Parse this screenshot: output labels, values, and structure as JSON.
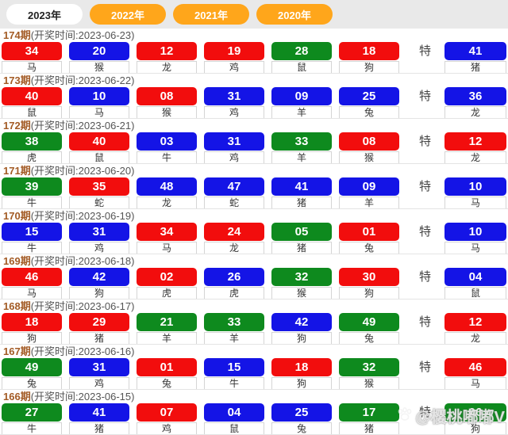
{
  "colors": {
    "red": "#f20d0d",
    "blue": "#1414e6",
    "green": "#0e8a1e",
    "tab_orange": "#ffa61b",
    "tabbar_bg": "#e9e9e9",
    "issue_text": "#a35b25"
  },
  "tabs": [
    {
      "label": "2023年",
      "active": true
    },
    {
      "label": "2022年",
      "active": false
    },
    {
      "label": "2021年",
      "active": false
    },
    {
      "label": "2020年",
      "active": false
    }
  ],
  "labels": {
    "special": "特"
  },
  "watermark": {
    "icon": "paw-icon",
    "text": "@樱桃嘟嘟V"
  },
  "rows": [
    {
      "issue_label": "174期",
      "time_label": "(开奖时间:2023-06-23)",
      "balls": [
        {
          "num": "34",
          "zodiac": "马",
          "color": "red"
        },
        {
          "num": "20",
          "zodiac": "猴",
          "color": "blue"
        },
        {
          "num": "12",
          "zodiac": "龙",
          "color": "red"
        },
        {
          "num": "19",
          "zodiac": "鸡",
          "color": "red"
        },
        {
          "num": "28",
          "zodiac": "鼠",
          "color": "green"
        },
        {
          "num": "18",
          "zodiac": "狗",
          "color": "red"
        }
      ],
      "special": {
        "num": "41",
        "zodiac": "猪",
        "color": "blue"
      }
    },
    {
      "issue_label": "173期",
      "time_label": "(开奖时间:2023-06-22)",
      "balls": [
        {
          "num": "40",
          "zodiac": "鼠",
          "color": "red"
        },
        {
          "num": "10",
          "zodiac": "马",
          "color": "blue"
        },
        {
          "num": "08",
          "zodiac": "猴",
          "color": "red"
        },
        {
          "num": "31",
          "zodiac": "鸡",
          "color": "blue"
        },
        {
          "num": "09",
          "zodiac": "羊",
          "color": "blue"
        },
        {
          "num": "25",
          "zodiac": "兔",
          "color": "blue"
        }
      ],
      "special": {
        "num": "36",
        "zodiac": "龙",
        "color": "blue"
      }
    },
    {
      "issue_label": "172期",
      "time_label": "(开奖时间:2023-06-21)",
      "balls": [
        {
          "num": "38",
          "zodiac": "虎",
          "color": "green"
        },
        {
          "num": "40",
          "zodiac": "鼠",
          "color": "red"
        },
        {
          "num": "03",
          "zodiac": "牛",
          "color": "blue"
        },
        {
          "num": "31",
          "zodiac": "鸡",
          "color": "blue"
        },
        {
          "num": "33",
          "zodiac": "羊",
          "color": "green"
        },
        {
          "num": "08",
          "zodiac": "猴",
          "color": "red"
        }
      ],
      "special": {
        "num": "12",
        "zodiac": "龙",
        "color": "red"
      }
    },
    {
      "issue_label": "171期",
      "time_label": "(开奖时间:2023-06-20)",
      "balls": [
        {
          "num": "39",
          "zodiac": "牛",
          "color": "green"
        },
        {
          "num": "35",
          "zodiac": "蛇",
          "color": "red"
        },
        {
          "num": "48",
          "zodiac": "龙",
          "color": "blue"
        },
        {
          "num": "47",
          "zodiac": "蛇",
          "color": "blue"
        },
        {
          "num": "41",
          "zodiac": "猪",
          "color": "blue"
        },
        {
          "num": "09",
          "zodiac": "羊",
          "color": "blue"
        }
      ],
      "special": {
        "num": "10",
        "zodiac": "马",
        "color": "blue"
      }
    },
    {
      "issue_label": "170期",
      "time_label": "(开奖时间:2023-06-19)",
      "balls": [
        {
          "num": "15",
          "zodiac": "牛",
          "color": "blue"
        },
        {
          "num": "31",
          "zodiac": "鸡",
          "color": "blue"
        },
        {
          "num": "34",
          "zodiac": "马",
          "color": "red"
        },
        {
          "num": "24",
          "zodiac": "龙",
          "color": "red"
        },
        {
          "num": "05",
          "zodiac": "猪",
          "color": "green"
        },
        {
          "num": "01",
          "zodiac": "兔",
          "color": "red"
        }
      ],
      "special": {
        "num": "10",
        "zodiac": "马",
        "color": "blue"
      }
    },
    {
      "issue_label": "169期",
      "time_label": "(开奖时间:2023-06-18)",
      "balls": [
        {
          "num": "46",
          "zodiac": "马",
          "color": "red"
        },
        {
          "num": "42",
          "zodiac": "狗",
          "color": "blue"
        },
        {
          "num": "02",
          "zodiac": "虎",
          "color": "red"
        },
        {
          "num": "26",
          "zodiac": "虎",
          "color": "blue"
        },
        {
          "num": "32",
          "zodiac": "猴",
          "color": "green"
        },
        {
          "num": "30",
          "zodiac": "狗",
          "color": "red"
        }
      ],
      "special": {
        "num": "04",
        "zodiac": "鼠",
        "color": "blue"
      }
    },
    {
      "issue_label": "168期",
      "time_label": "(开奖时间:2023-06-17)",
      "balls": [
        {
          "num": "18",
          "zodiac": "狗",
          "color": "red"
        },
        {
          "num": "29",
          "zodiac": "猪",
          "color": "red"
        },
        {
          "num": "21",
          "zodiac": "羊",
          "color": "green"
        },
        {
          "num": "33",
          "zodiac": "羊",
          "color": "green"
        },
        {
          "num": "42",
          "zodiac": "狗",
          "color": "blue"
        },
        {
          "num": "49",
          "zodiac": "兔",
          "color": "green"
        }
      ],
      "special": {
        "num": "12",
        "zodiac": "龙",
        "color": "red"
      }
    },
    {
      "issue_label": "167期",
      "time_label": "(开奖时间:2023-06-16)",
      "balls": [
        {
          "num": "49",
          "zodiac": "兔",
          "color": "green"
        },
        {
          "num": "31",
          "zodiac": "鸡",
          "color": "blue"
        },
        {
          "num": "01",
          "zodiac": "兔",
          "color": "red"
        },
        {
          "num": "15",
          "zodiac": "牛",
          "color": "blue"
        },
        {
          "num": "18",
          "zodiac": "狗",
          "color": "red"
        },
        {
          "num": "32",
          "zodiac": "猴",
          "color": "green"
        }
      ],
      "special": {
        "num": "46",
        "zodiac": "马",
        "color": "red"
      }
    },
    {
      "issue_label": "166期",
      "time_label": "(开奖时间:2023-06-15)",
      "balls": [
        {
          "num": "27",
          "zodiac": "牛",
          "color": "green"
        },
        {
          "num": "41",
          "zodiac": "猪",
          "color": "blue"
        },
        {
          "num": "07",
          "zodiac": "鸡",
          "color": "red"
        },
        {
          "num": "04",
          "zodiac": "鼠",
          "color": "blue"
        },
        {
          "num": "25",
          "zodiac": "兔",
          "color": "blue"
        },
        {
          "num": "17",
          "zodiac": "猪",
          "color": "green"
        }
      ],
      "special": {
        "num": "06",
        "zodiac": "狗",
        "color": "green"
      }
    }
  ]
}
